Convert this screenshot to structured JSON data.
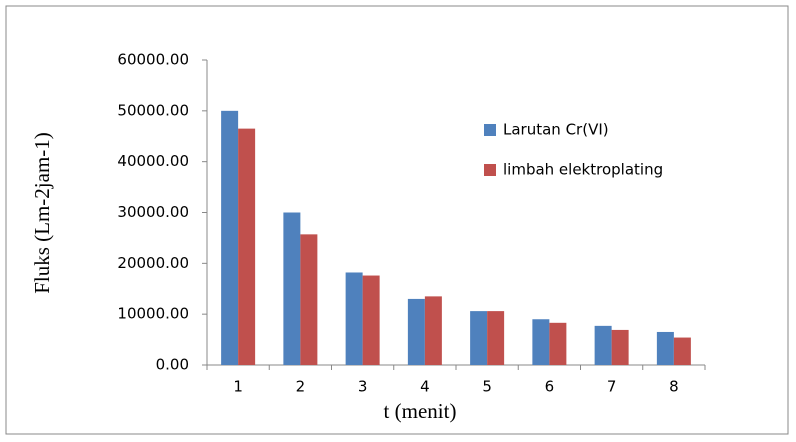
{
  "chart_data": {
    "type": "bar",
    "categories": [
      "1",
      "2",
      "3",
      "4",
      "5",
      "6",
      "7",
      "8"
    ],
    "series": [
      {
        "name": "Larutan Cr(VI)",
        "color": "#4f81bd",
        "values": [
          50000,
          30000,
          18200,
          13000,
          10600,
          9000,
          7700,
          6500
        ]
      },
      {
        "name": "limbah elektroplating",
        "color": "#c0504d",
        "values": [
          46500,
          25700,
          17600,
          13500,
          10600,
          8300,
          6900,
          5400
        ]
      }
    ],
    "x_label": "t (menit)",
    "y_label": "Fluks (Lm-2jam-1)",
    "ylim": [
      0,
      60000
    ],
    "yticks": [
      {
        "value": 0,
        "label": "0.00"
      },
      {
        "value": 10000,
        "label": "10000.00"
      },
      {
        "value": 20000,
        "label": "20000.00"
      },
      {
        "value": 30000,
        "label": "30000.00"
      },
      {
        "value": 40000,
        "label": "40000.00"
      },
      {
        "value": 50000,
        "label": "50000.00"
      },
      {
        "value": 60000,
        "label": "60000.00"
      }
    ],
    "grid": false,
    "legend_position": "right"
  }
}
